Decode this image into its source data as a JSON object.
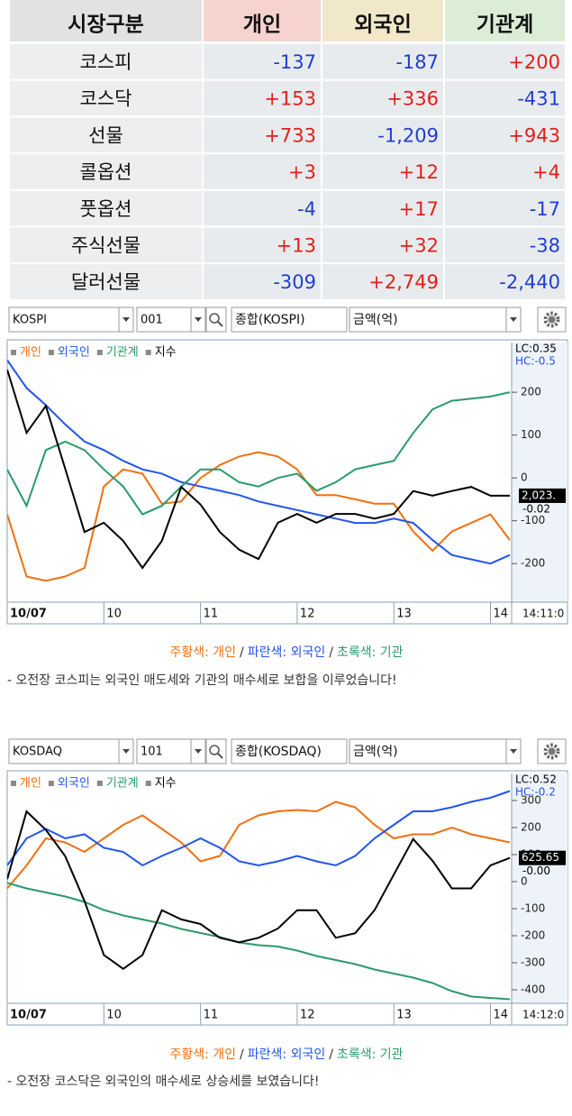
{
  "table": {
    "header": [
      "시장구분",
      "개인",
      "외국인",
      "기관계"
    ],
    "rows": [
      [
        "코스피",
        "-137",
        "-187",
        "+200"
      ],
      [
        "코스닥",
        "+153",
        "+336",
        "-431"
      ],
      [
        "선물",
        "+733",
        "-1,209",
        "+943"
      ],
      [
        "콜옵션",
        "+3",
        "+12",
        "+4"
      ],
      [
        "풋옵션",
        "-4",
        "+17",
        "-17"
      ],
      [
        "주식선물",
        "+13",
        "+32",
        "-38"
      ],
      [
        "달러선물",
        "-309",
        "+2,749",
        "-2,440"
      ]
    ]
  },
  "chart_data": [
    {
      "type": "line",
      "toolbar": {
        "market": "KOSPI",
        "code": "001",
        "index": "종합(KOSPI)",
        "unit": "금액(억)"
      },
      "x": [
        9,
        9.2,
        9.4,
        9.6,
        9.8,
        10,
        10.2,
        10.4,
        10.6,
        10.8,
        11,
        11.2,
        11.4,
        11.6,
        11.8,
        12,
        12.2,
        12.4,
        12.6,
        12.8,
        13,
        13.2,
        13.4,
        13.6,
        13.8,
        14,
        14.2
      ],
      "xlim": [
        9,
        14.2
      ],
      "xticks": [
        {
          "value": 9,
          "label": "10/07"
        },
        10,
        11,
        12,
        13,
        14
      ],
      "time_label": "14:11:0",
      "ylim": [
        -290,
        316
      ],
      "yticks": [
        -200,
        -100,
        0,
        100,
        200
      ],
      "y2lim": [
        2003,
        2053
      ],
      "series": [
        {
          "name": "개인",
          "color": "#f07010",
          "values": [
            -85,
            -230,
            -240,
            -230,
            -210,
            -20,
            20,
            10,
            -60,
            -55,
            0,
            30,
            50,
            60,
            50,
            20,
            -40,
            -40,
            -50,
            -60,
            -60,
            -125,
            -170,
            -125,
            -105,
            -85,
            -145
          ]
        },
        {
          "name": "외국인",
          "color": "#2255ee",
          "values": [
            275,
            210,
            170,
            125,
            85,
            65,
            40,
            20,
            10,
            -10,
            -20,
            -30,
            -40,
            -55,
            -65,
            -75,
            -85,
            -95,
            -105,
            -105,
            -95,
            -105,
            -145,
            -180,
            -190,
            -200,
            -180
          ]
        },
        {
          "name": "기관계",
          "color": "#2a9a6a",
          "values": [
            20,
            -65,
            65,
            85,
            65,
            20,
            -20,
            -85,
            -65,
            -20,
            20,
            20,
            -10,
            -20,
            0,
            10,
            -30,
            -10,
            20,
            30,
            40,
            105,
            160,
            180,
            185,
            190,
            200
          ]
        },
        {
          "name": "지수",
          "color": "#000000",
          "axis": "y2",
          "values": [
            2047.8,
            2035.6,
            2040.8,
            2028.7,
            2016.5,
            2018.3,
            2014.8,
            2009.6,
            2014.8,
            2025.2,
            2021.8,
            2016.5,
            2013.1,
            2011.3,
            2018.3,
            2020.0,
            2018.3,
            2020.0,
            2020.0,
            2019.1,
            2020.0,
            2024.4,
            2023.5,
            2024.4,
            2025.2,
            2023.5,
            2023.5
          ]
        }
      ],
      "last_label": "2,023.",
      "annotations": [
        "LC:0.35",
        "HC:-0.5",
        "-0.02"
      ],
      "note": [
        {
          "text": "주황색: 개인",
          "color": "#f07010"
        },
        {
          "text": "/",
          "color": "#333333"
        },
        {
          "text": "파란색: 외국인",
          "color": "#2255ee"
        },
        {
          "text": "/",
          "color": "#333333"
        },
        {
          "text": "초록색: 기관",
          "color": "#2a9a6a"
        }
      ],
      "comment": "- 오전장 코스피는 외국인 매도세와 기관의 매수세로 보합을 이루었습니다!"
    },
    {
      "type": "line",
      "toolbar": {
        "market": "KOSDAQ",
        "code": "101",
        "index": "종합(KOSDAQ)",
        "unit": "금액(억)"
      },
      "x": [
        9,
        9.2,
        9.4,
        9.6,
        9.8,
        10,
        10.2,
        10.4,
        10.6,
        10.8,
        11,
        11.2,
        11.4,
        11.6,
        11.8,
        12,
        12.2,
        12.4,
        12.6,
        12.8,
        13,
        13.2,
        13.4,
        13.6,
        13.8,
        14,
        14.2
      ],
      "xlim": [
        9,
        14.2
      ],
      "xticks": [
        {
          "value": 9,
          "label": "10/07"
        },
        10,
        11,
        12,
        13,
        14
      ],
      "time_label": "14:12:0",
      "ylim": [
        -450,
        400
      ],
      "yticks": [
        -400,
        -300,
        -200,
        -100,
        0,
        100,
        200,
        300
      ],
      "y2lim": [
        613,
        633
      ],
      "series": [
        {
          "name": "개인",
          "color": "#f07010",
          "values": [
            -25,
            60,
            160,
            145,
            110,
            160,
            210,
            245,
            195,
            145,
            75,
            95,
            210,
            245,
            260,
            265,
            260,
            295,
            275,
            210,
            160,
            175,
            175,
            200,
            175,
            160,
            145
          ]
        },
        {
          "name": "외국인",
          "color": "#2255ee",
          "values": [
            60,
            160,
            195,
            160,
            175,
            125,
            110,
            60,
            95,
            125,
            160,
            125,
            75,
            60,
            75,
            95,
            75,
            60,
            95,
            160,
            210,
            260,
            260,
            275,
            295,
            310,
            335
          ]
        },
        {
          "name": "기관계",
          "color": "#2a9a6a",
          "values": [
            -5,
            -25,
            -40,
            -55,
            -75,
            -105,
            -125,
            -140,
            -155,
            -175,
            -190,
            -205,
            -225,
            -235,
            -240,
            -255,
            -275,
            -290,
            -305,
            -325,
            -340,
            -355,
            -375,
            -405,
            -425,
            -430,
            -435
          ]
        },
        {
          "name": "지수",
          "color": "#000000",
          "axis": "y2",
          "values": [
            623.8,
            629.7,
            628.1,
            625.8,
            621.9,
            617.2,
            616.0,
            617.2,
            621.1,
            620.3,
            619.9,
            618.7,
            618.3,
            618.7,
            619.5,
            621.1,
            621.1,
            618.7,
            619.1,
            621.1,
            624.2,
            627.3,
            625.4,
            623.0,
            623.0,
            625.0,
            625.65
          ]
        }
      ],
      "last_label": "625.65",
      "annotations": [
        "LC:0.52",
        "HC:-0.2",
        "-0.00"
      ],
      "note": [
        {
          "text": "주황색: 개인",
          "color": "#f07010"
        },
        {
          "text": "/",
          "color": "#333333"
        },
        {
          "text": "파란색: 외국인",
          "color": "#2255ee"
        },
        {
          "text": "/",
          "color": "#333333"
        },
        {
          "text": "초록색: 기관",
          "color": "#2a9a6a"
        }
      ],
      "comment": "- 오전장 코스닥은 외국인의 매수세로 상승세를 보였습니다!"
    }
  ]
}
